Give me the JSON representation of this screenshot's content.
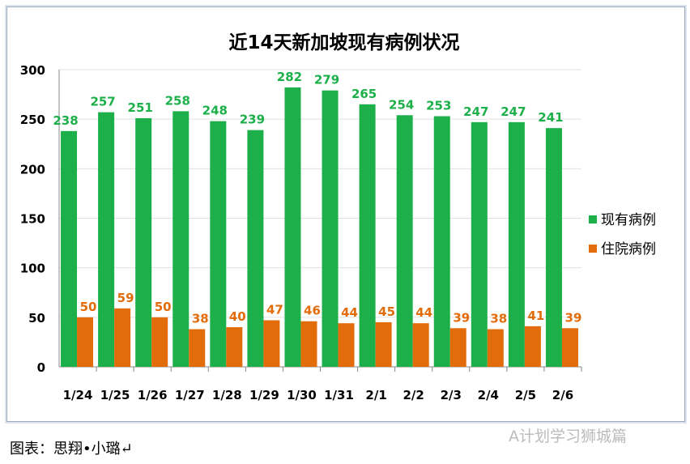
{
  "chart_data": {
    "type": "bar",
    "title": "近14天新加坡现有病例状况",
    "categories": [
      "1/24",
      "1/25",
      "1/26",
      "1/27",
      "1/28",
      "1/29",
      "1/30",
      "1/31",
      "2/1",
      "2/2",
      "2/3",
      "2/4",
      "2/5",
      "2/6"
    ],
    "series": [
      {
        "name": "现有病例",
        "color": "#1db04a",
        "values": [
          238,
          257,
          251,
          258,
          248,
          239,
          282,
          279,
          265,
          254,
          253,
          247,
          247,
          241
        ]
      },
      {
        "name": "住院病例",
        "color": "#e36c0a",
        "values": [
          50,
          59,
          50,
          38,
          40,
          47,
          46,
          44,
          45,
          44,
          39,
          38,
          41,
          39
        ]
      }
    ],
    "ylim": [
      0,
      300
    ],
    "yticks": [
      0,
      50,
      100,
      150,
      200,
      250,
      300
    ],
    "grid": true,
    "legend": "right"
  },
  "caption": "图表：思翔•小璐↵",
  "watermark": "A计划学习狮城篇"
}
